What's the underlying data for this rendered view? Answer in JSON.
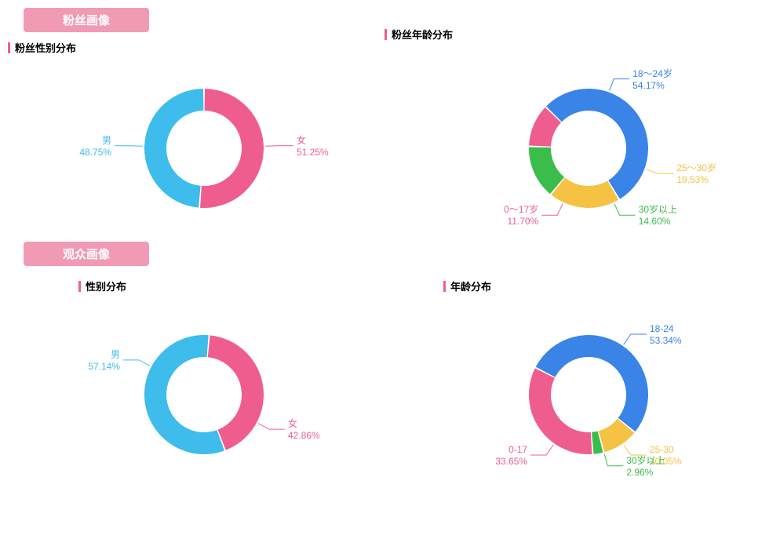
{
  "sections": {
    "fans": {
      "badge": "粉丝画像"
    },
    "audience": {
      "badge": "观众画像"
    }
  },
  "charts": {
    "fans_gender": {
      "title": "粉丝性别分布",
      "type": "donut",
      "inner_radius": 48,
      "outer_radius": 76,
      "slices": [
        {
          "label": "女",
          "value": 51.25,
          "pct_text": "51.25%",
          "color": "#ef5d8f"
        },
        {
          "label": "男",
          "value": 48.75,
          "pct_text": "48.75%",
          "color": "#3ebcec"
        }
      ]
    },
    "fans_age": {
      "title": "粉丝年龄分布",
      "type": "donut",
      "inner_radius": 48,
      "outer_radius": 76,
      "slices": [
        {
          "label": "18～24岁",
          "value": 54.17,
          "pct_text": "54.17%",
          "color": "#3a84e8"
        },
        {
          "label": "25～30岁",
          "value": 19.53,
          "pct_text": "19.53%",
          "color": "#f6c244"
        },
        {
          "label": "30岁以上",
          "value": 14.6,
          "pct_text": "14.60%",
          "color": "#3bbd4c"
        },
        {
          "label": "0～17岁",
          "value": 11.7,
          "pct_text": "11.70%",
          "color": "#ef5d8f"
        }
      ]
    },
    "aud_gender": {
      "title": "性别分布",
      "type": "donut",
      "inner_radius": 48,
      "outer_radius": 76,
      "slices": [
        {
          "label": "男",
          "value": 57.14,
          "pct_text": "57.14%",
          "color": "#3ebcec"
        },
        {
          "label": "女",
          "value": 42.86,
          "pct_text": "42.86%",
          "color": "#ef5d8f"
        }
      ]
    },
    "aud_age": {
      "title": "年龄分布",
      "type": "donut",
      "inner_radius": 48,
      "outer_radius": 76,
      "slices": [
        {
          "label": "18-24",
          "value": 53.34,
          "pct_text": "53.34%",
          "color": "#3a84e8"
        },
        {
          "label": "25-30",
          "value": 10.05,
          "pct_text": "10.05%",
          "color": "#f6c244"
        },
        {
          "label": "30岁以上",
          "value": 2.96,
          "pct_text": "2.96%",
          "color": "#3bbd4c"
        },
        {
          "label": "0-17",
          "value": 33.65,
          "pct_text": "33.65%",
          "color": "#ef5d8f"
        }
      ]
    }
  },
  "style": {
    "gap_deg": 1.5,
    "leader_color": "#cccccc",
    "label_fontsize": 12
  }
}
